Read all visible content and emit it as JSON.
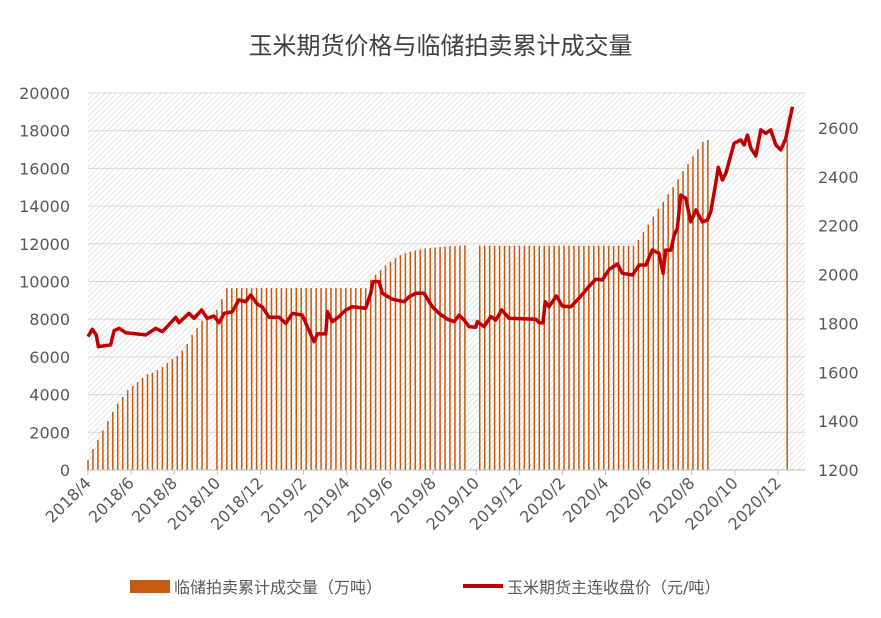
{
  "chart_data": {
    "type": "bar+line",
    "title": "玉米期货价格与临储拍卖累计成交量",
    "x_unit": "months since 2018/4",
    "x_range": [
      0,
      33.25
    ],
    "x_ticks": [
      {
        "pos": 0,
        "label": "2018/4"
      },
      {
        "pos": 2,
        "label": "2018/6"
      },
      {
        "pos": 4,
        "label": "2018/8"
      },
      {
        "pos": 6,
        "label": "2018/10"
      },
      {
        "pos": 8,
        "label": "2018/12"
      },
      {
        "pos": 10,
        "label": "2019/2"
      },
      {
        "pos": 12,
        "label": "2019/4"
      },
      {
        "pos": 14,
        "label": "2019/6"
      },
      {
        "pos": 16,
        "label": "2019/8"
      },
      {
        "pos": 18,
        "label": "2019/10"
      },
      {
        "pos": 20,
        "label": "2019/12"
      },
      {
        "pos": 22,
        "label": "2020/2"
      },
      {
        "pos": 24,
        "label": "2020/4"
      },
      {
        "pos": 26,
        "label": "2020/6"
      },
      {
        "pos": 28,
        "label": "2020/8"
      },
      {
        "pos": 30,
        "label": "2020/10"
      },
      {
        "pos": 32,
        "label": "2020/12"
      }
    ],
    "y_left": {
      "range": [
        0,
        20000
      ],
      "ticks": [
        "0",
        "2000",
        "4000",
        "6000",
        "8000",
        "10000",
        "12000",
        "14000",
        "16000",
        "18000",
        "20000"
      ]
    },
    "y_right": {
      "range": [
        1200,
        2743
      ],
      "ticks": [
        "1200",
        "1400",
        "1600",
        "1800",
        "2000",
        "2200",
        "2400",
        "2600"
      ]
    },
    "grid": true,
    "legend_position": "bottom",
    "colors": {
      "bars": "#C55A11",
      "line": "#C00000",
      "grid": "#D9D9D9",
      "hatch": "#D0D0D0"
    },
    "series": [
      {
        "name": "临储拍卖累计成交量（万吨）",
        "type": "bar",
        "axis": "left",
        "x_unit": "weeks since 2018/4",
        "values": [
          530,
          1110,
          1590,
          2090,
          2600,
          3080,
          3520,
          3870,
          4240,
          4460,
          4670,
          4880,
          5080,
          5160,
          5300,
          5480,
          5680,
          5890,
          6050,
          6330,
          6690,
          7160,
          7530,
          7920,
          8010,
          null,
          8490,
          9070,
          9650,
          9650,
          9650,
          9650,
          9650,
          9650,
          9650,
          9650,
          9650,
          9650,
          9650,
          9650,
          9650,
          9650,
          9650,
          9650,
          9650,
          9650,
          9650,
          9650,
          9650,
          9650,
          9650,
          9650,
          9650,
          9650,
          9650,
          9650,
          9650,
          10100,
          10350,
          10600,
          10850,
          11050,
          11250,
          11400,
          11500,
          11580,
          11650,
          11700,
          11750,
          11780,
          11800,
          11830,
          11850,
          11870,
          11880,
          11900,
          11920,
          null,
          null,
          11900,
          11900,
          11900,
          11900,
          11900,
          11900,
          11900,
          11900,
          11900,
          11900,
          11900,
          11900,
          11900,
          11900,
          11900,
          11900,
          11900,
          11900,
          11900,
          11900,
          11900,
          11900,
          11900,
          11900,
          11900,
          11900,
          11900,
          11900,
          11900,
          11900,
          11900,
          11900,
          12200,
          12630,
          13010,
          13440,
          13850,
          14220,
          14640,
          15000,
          15420,
          15850,
          16230,
          16640,
          17010,
          17400,
          17510,
          null,
          null,
          null,
          null,
          null,
          null,
          null,
          null,
          null,
          null,
          null,
          null,
          null,
          null,
          null,
          17520
        ]
      },
      {
        "name": "玉米期货主连收盘价（元/吨）",
        "type": "line",
        "axis": "right",
        "points": [
          [
            0,
            1746
          ],
          [
            0.2,
            1776
          ],
          [
            0.38,
            1753
          ],
          [
            0.48,
            1705
          ],
          [
            1.05,
            1712
          ],
          [
            1.21,
            1770
          ],
          [
            1.44,
            1780
          ],
          [
            1.75,
            1762
          ],
          [
            2.68,
            1753
          ],
          [
            3.14,
            1780
          ],
          [
            3.45,
            1766
          ],
          [
            4.07,
            1825
          ],
          [
            4.22,
            1803
          ],
          [
            4.68,
            1841
          ],
          [
            4.92,
            1821
          ],
          [
            5.27,
            1855
          ],
          [
            5.53,
            1821
          ],
          [
            5.84,
            1830
          ],
          [
            6.08,
            1803
          ],
          [
            6.31,
            1841
          ],
          [
            6.69,
            1848
          ],
          [
            7.0,
            1896
          ],
          [
            7.31,
            1889
          ],
          [
            7.55,
            1916
          ],
          [
            7.85,
            1879
          ],
          [
            8.08,
            1868
          ],
          [
            8.4,
            1825
          ],
          [
            8.86,
            1825
          ],
          [
            9.17,
            1800
          ],
          [
            9.48,
            1841
          ],
          [
            9.94,
            1834
          ],
          [
            10.17,
            1787
          ],
          [
            10.48,
            1725
          ],
          [
            10.64,
            1757
          ],
          [
            11.03,
            1757
          ],
          [
            11.1,
            1848
          ],
          [
            11.33,
            1807
          ],
          [
            11.64,
            1828
          ],
          [
            11.95,
            1855
          ],
          [
            12.26,
            1868
          ],
          [
            12.88,
            1862
          ],
          [
            13.11,
            1923
          ],
          [
            13.22,
            1971
          ],
          [
            13.5,
            1971
          ],
          [
            13.65,
            1923
          ],
          [
            14.11,
            1899
          ],
          [
            14.66,
            1889
          ],
          [
            14.89,
            1909
          ],
          [
            15.2,
            1923
          ],
          [
            15.58,
            1923
          ],
          [
            15.97,
            1868
          ],
          [
            16.28,
            1841
          ],
          [
            16.67,
            1817
          ],
          [
            16.98,
            1807
          ],
          [
            17.21,
            1834
          ],
          [
            17.44,
            1814
          ],
          [
            17.67,
            1787
          ],
          [
            17.98,
            1784
          ],
          [
            18.06,
            1807
          ],
          [
            18.37,
            1787
          ],
          [
            18.68,
            1828
          ],
          [
            18.91,
            1814
          ],
          [
            19.19,
            1855
          ],
          [
            19.53,
            1821
          ],
          [
            20.77,
            1817
          ],
          [
            20.92,
            1803
          ],
          [
            21.1,
            1803
          ],
          [
            21.2,
            1889
          ],
          [
            21.38,
            1868
          ],
          [
            21.72,
            1912
          ],
          [
            22.0,
            1871
          ],
          [
            22.39,
            1868
          ],
          [
            22.77,
            1903
          ],
          [
            23.16,
            1944
          ],
          [
            23.55,
            1981
          ],
          [
            23.85,
            1978
          ],
          [
            24.17,
            2021
          ],
          [
            24.55,
            2043
          ],
          [
            24.78,
            2005
          ],
          [
            25.25,
            1998
          ],
          [
            25.56,
            2039
          ],
          [
            25.87,
            2039
          ],
          [
            26.17,
            2100
          ],
          [
            26.48,
            2087
          ],
          [
            26.67,
            2005
          ],
          [
            26.79,
            2100
          ],
          [
            27.03,
            2100
          ],
          [
            27.18,
            2161
          ],
          [
            27.33,
            2189
          ],
          [
            27.49,
            2325
          ],
          [
            27.72,
            2312
          ],
          [
            27.95,
            2216
          ],
          [
            28.19,
            2264
          ],
          [
            28.49,
            2216
          ],
          [
            28.72,
            2223
          ],
          [
            28.88,
            2257
          ],
          [
            29.11,
            2373
          ],
          [
            29.23,
            2439
          ],
          [
            29.42,
            2387
          ],
          [
            29.58,
            2415
          ],
          [
            29.96,
            2537
          ],
          [
            30.27,
            2551
          ],
          [
            30.43,
            2530
          ],
          [
            30.58,
            2571
          ],
          [
            30.74,
            2517
          ],
          [
            30.97,
            2485
          ],
          [
            31.2,
            2592
          ],
          [
            31.43,
            2578
          ],
          [
            31.66,
            2592
          ],
          [
            31.9,
            2530
          ],
          [
            32.13,
            2510
          ],
          [
            32.36,
            2557
          ],
          [
            32.55,
            2639
          ],
          [
            32.67,
            2687
          ]
        ]
      }
    ]
  }
}
